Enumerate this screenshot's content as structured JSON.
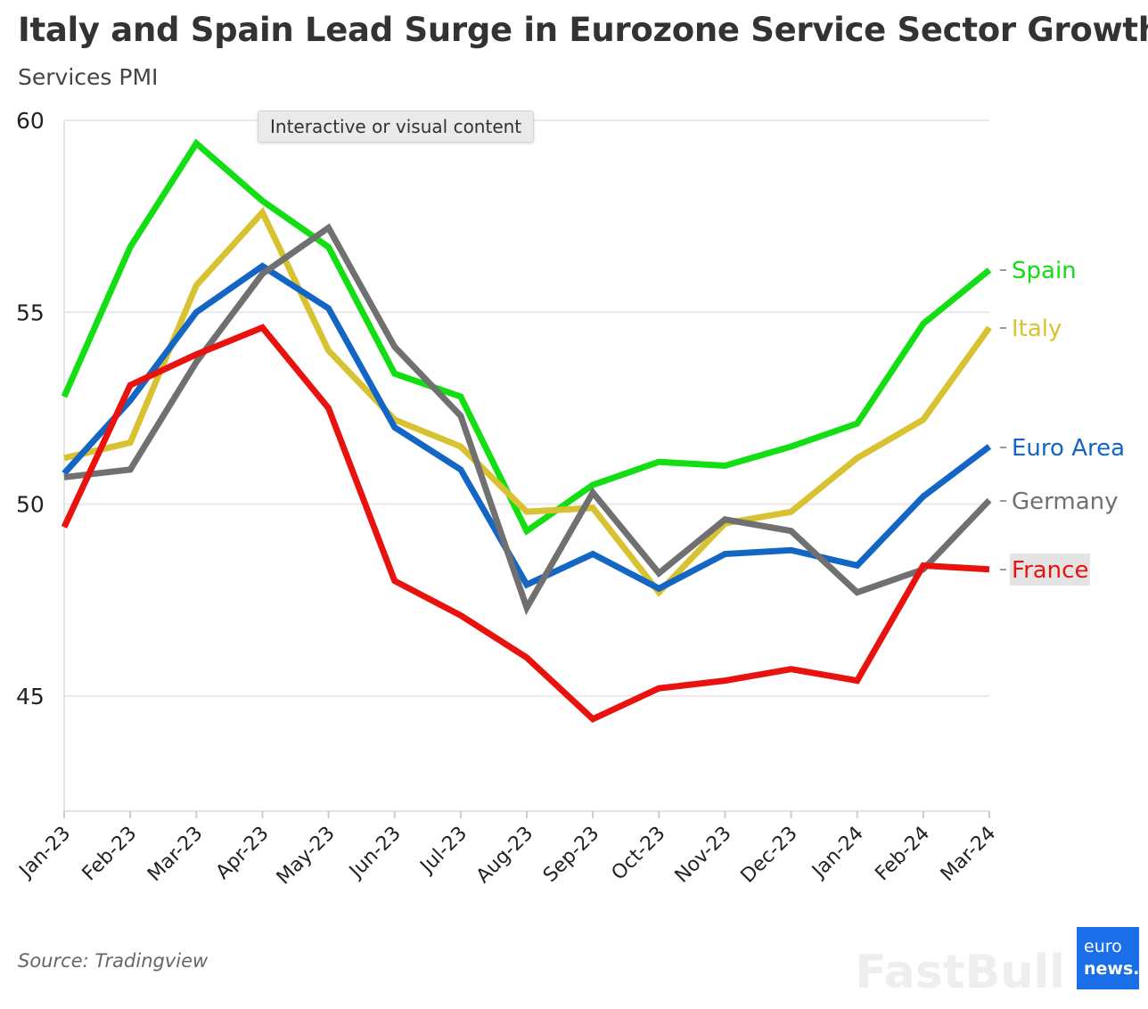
{
  "title": "Italy and Spain Lead Surge in Eurozone Service Sector Growth",
  "subtitle": "Services PMI",
  "source": "Source: Tradingview",
  "tooltip": "Interactive or visual content",
  "logo": {
    "line1": "euro",
    "line2": "news."
  },
  "watermark": "FastBull",
  "chart_data": {
    "type": "line",
    "title": "Italy and Spain Lead Surge in Eurozone Service Sector Growth",
    "ylabel": "Services PMI",
    "xlabel": "",
    "ylim": [
      42,
      60
    ],
    "yticks": [
      45,
      50,
      55,
      60
    ],
    "grid": true,
    "legend": "inline-right",
    "categories": [
      "Jan-23",
      "Feb-23",
      "Mar-23",
      "Apr-23",
      "May-23",
      "Jun-23",
      "Jul-23",
      "Aug-23",
      "Sep-23",
      "Oct-23",
      "Nov-23",
      "Dec-23",
      "Jan-24",
      "Feb-24",
      "Mar-24"
    ],
    "series": [
      {
        "name": "Spain",
        "color": "#13dd13",
        "values": [
          52.8,
          56.7,
          59.4,
          57.9,
          56.7,
          53.4,
          52.8,
          49.3,
          50.5,
          51.1,
          51.0,
          51.5,
          52.1,
          54.7,
          56.1
        ]
      },
      {
        "name": "Italy",
        "color": "#d8c232",
        "values": [
          51.2,
          51.6,
          55.7,
          57.6,
          54.0,
          52.2,
          51.5,
          49.8,
          49.9,
          47.7,
          49.5,
          49.8,
          51.2,
          52.2,
          54.6
        ]
      },
      {
        "name": "Euro Area",
        "color": "#1466c4",
        "values": [
          50.8,
          52.7,
          55.0,
          56.2,
          55.1,
          52.0,
          50.9,
          47.9,
          48.7,
          47.8,
          48.7,
          48.8,
          48.4,
          50.2,
          51.5
        ]
      },
      {
        "name": "Germany",
        "color": "#707070",
        "values": [
          50.7,
          50.9,
          53.7,
          56.0,
          57.2,
          54.1,
          52.3,
          47.3,
          50.3,
          48.2,
          49.6,
          49.3,
          47.7,
          48.3,
          50.1
        ]
      },
      {
        "name": "France",
        "color": "#e8130f",
        "values": [
          49.4,
          53.1,
          53.9,
          54.6,
          52.5,
          48.0,
          47.1,
          46.0,
          44.4,
          45.2,
          45.4,
          45.7,
          45.4,
          48.4,
          48.3
        ]
      }
    ]
  }
}
